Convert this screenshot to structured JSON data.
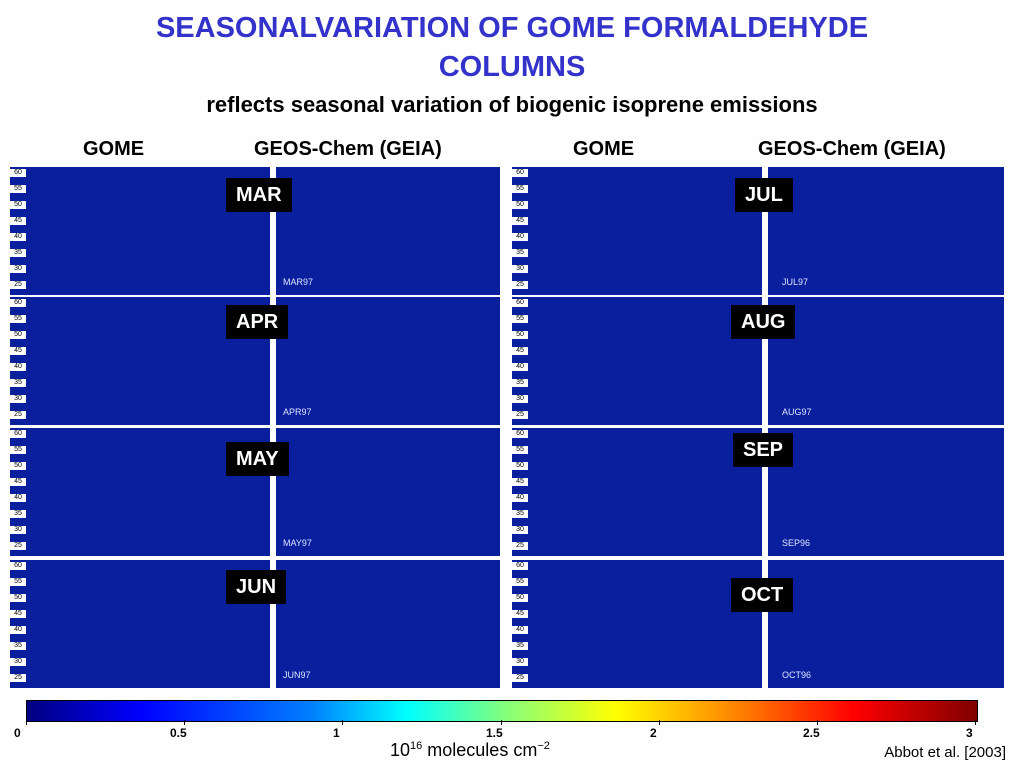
{
  "title_line1": "SEASONALVARIATION OF GOME FORMALDEHYDE",
  "title_line2": "COLUMNS",
  "subtitle": "reflects seasonal variation of biogenic isoprene emissions",
  "column_headers": [
    "GOME",
    "GEOS-Chem (GEIA)",
    "GOME",
    "GEOS-Chem (GEIA)"
  ],
  "lat_ticks": [
    "60",
    "55",
    "50",
    "45",
    "40",
    "35",
    "30",
    "25"
  ],
  "panels": [
    {
      "month": "MAR",
      "sim_label": "MAR97"
    },
    {
      "month": "APR",
      "sim_label": "APR97"
    },
    {
      "month": "MAY",
      "sim_label": "MAY97"
    },
    {
      "month": "JUN",
      "sim_label": "JUN97"
    },
    {
      "month": "JUL",
      "sim_label": "JUL97"
    },
    {
      "month": "AUG",
      "sim_label": "AUG97"
    },
    {
      "month": "SEP",
      "sim_label": "SEP96"
    },
    {
      "month": "OCT",
      "sim_label": "OCT96"
    }
  ],
  "colorbar": {
    "ticks": [
      "0",
      "0.5",
      "1",
      "1.5",
      "2",
      "2.5",
      "3"
    ],
    "unit_base": "10",
    "unit_exp": "16",
    "unit_rest": " molecules cm",
    "unit_exp2": "−2",
    "colors": [
      "#000080",
      "#0000ff",
      "#0080ff",
      "#00ffff",
      "#80ff80",
      "#ffff00",
      "#ff8000",
      "#ff0000",
      "#800000"
    ]
  },
  "credit": "Abbot et al. [2003]",
  "colors": {
    "title": "#3333cc",
    "map_background": "#0a1f9e",
    "month_badge": "#000000"
  }
}
